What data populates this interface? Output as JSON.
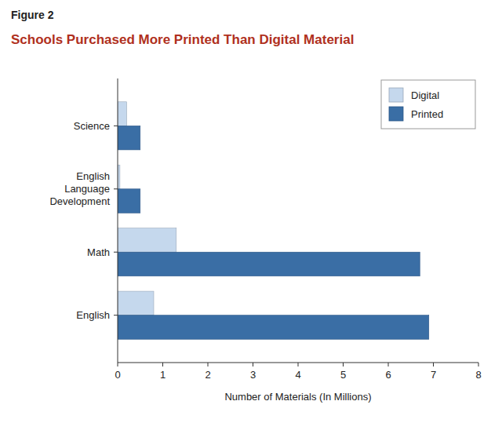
{
  "chart_data": {
    "type": "bar",
    "orientation": "horizontal",
    "title": "Schools Purchased More Printed Than Digital Material",
    "annotations": [
      "Figure 2"
    ],
    "x_label": "Number of Materials (In Millions)",
    "categories": [
      "English",
      "Math",
      "English\nLanguage\nDevelopment",
      "Science"
    ],
    "series": [
      {
        "name": "Digital",
        "color": "#c5d8ed",
        "values": [
          0.8,
          1.3,
          0.05,
          0.2
        ]
      },
      {
        "name": "Printed",
        "color": "#3a6ea5",
        "values": [
          6.9,
          6.7,
          0.5,
          0.5
        ]
      }
    ],
    "xlim": [
      0,
      8
    ],
    "xticks": [
      0,
      1,
      2,
      3,
      4,
      5,
      6,
      7,
      8
    ],
    "grid": false,
    "legend": "upper right"
  }
}
